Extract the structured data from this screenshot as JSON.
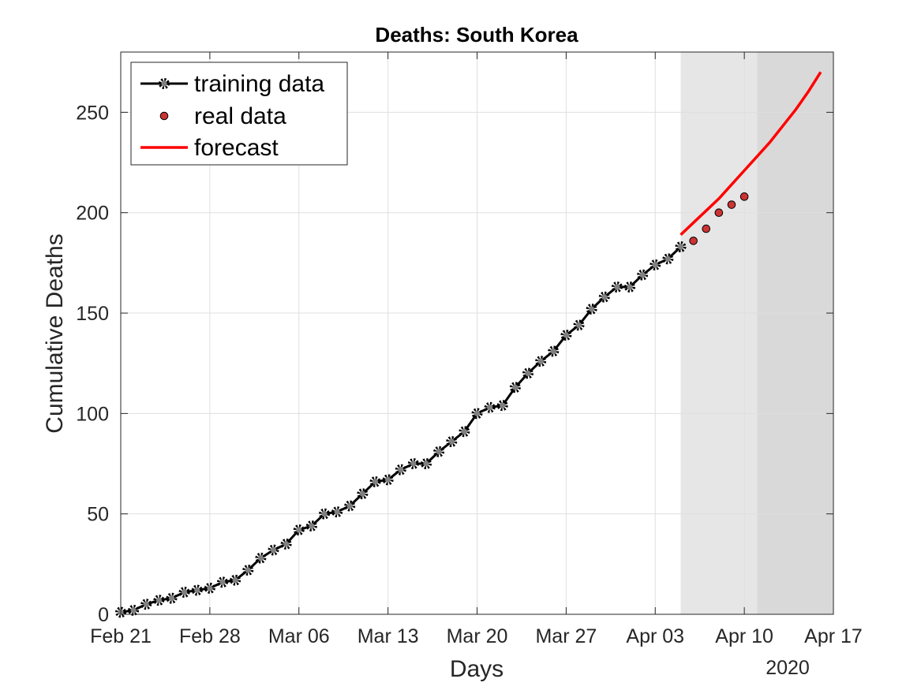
{
  "chart_data": {
    "type": "line",
    "title": "Deaths: South Korea",
    "xlabel": "Days",
    "ylabel": "Cumulative Deaths",
    "year_label": "2020",
    "xlim": [
      "2020-02-21",
      "2020-04-17"
    ],
    "ylim": [
      0,
      280
    ],
    "grid": true,
    "legend_position": "top-left",
    "x_ticks": [
      {
        "date": "2020-02-21",
        "label": "Feb 21"
      },
      {
        "date": "2020-02-28",
        "label": "Feb 28"
      },
      {
        "date": "2020-03-06",
        "label": "Mar 06"
      },
      {
        "date": "2020-03-13",
        "label": "Mar 13"
      },
      {
        "date": "2020-03-20",
        "label": "Mar 20"
      },
      {
        "date": "2020-03-27",
        "label": "Mar 27"
      },
      {
        "date": "2020-04-03",
        "label": "Apr 03"
      },
      {
        "date": "2020-04-10",
        "label": "Apr 10"
      },
      {
        "date": "2020-04-17",
        "label": "Apr 17"
      }
    ],
    "y_ticks": [
      0,
      50,
      100,
      150,
      200,
      250
    ],
    "shaded_regions": [
      {
        "from": "2020-04-05",
        "to": "2020-04-11",
        "color": "#e6e6e6"
      },
      {
        "from": "2020-04-11",
        "to": "2020-04-17",
        "color": "#d9d9d9"
      }
    ],
    "series": [
      {
        "name": "training data",
        "style": "line-marker",
        "color": "#000000",
        "marker_color": "#808080",
        "x_start": "2020-02-21",
        "values": [
          1,
          2,
          5,
          7,
          8,
          11,
          12,
          13,
          16,
          17,
          22,
          28,
          32,
          35,
          42,
          44,
          50,
          51,
          54,
          60,
          66,
          67,
          72,
          75,
          75,
          81,
          86,
          91,
          100,
          103,
          104,
          113,
          120,
          126,
          131,
          139,
          144,
          152,
          158,
          163,
          163,
          169,
          174,
          177,
          183
        ]
      },
      {
        "name": "real data",
        "style": "marker",
        "color": "#cc3333",
        "x_start": "2020-04-06",
        "values": [
          186,
          192,
          200,
          204,
          208
        ]
      },
      {
        "name": "forecast",
        "style": "line",
        "color": "#ff0000",
        "x_start": "2020-04-05",
        "values": [
          189,
          195,
          201,
          207,
          214,
          221,
          228,
          235,
          243,
          251,
          260,
          270
        ]
      }
    ],
    "legend": [
      "training data",
      "real data",
      "forecast"
    ]
  }
}
